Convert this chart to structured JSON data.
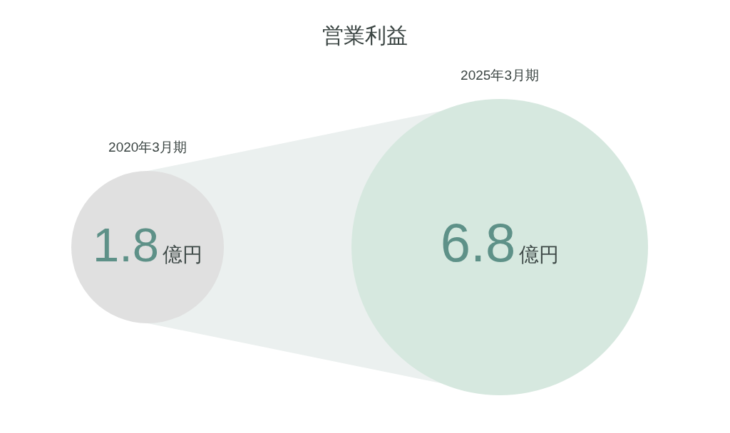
{
  "chart_data": {
    "type": "other",
    "title": "営業利益",
    "categories": [
      "2020年3月期",
      "2025年3月期"
    ],
    "values": [
      1.8,
      6.8
    ],
    "value_labels": [
      "1.8億円",
      "6.8億円"
    ],
    "colors": [
      "#e0e0e0",
      "#d6e8df"
    ]
  }
}
